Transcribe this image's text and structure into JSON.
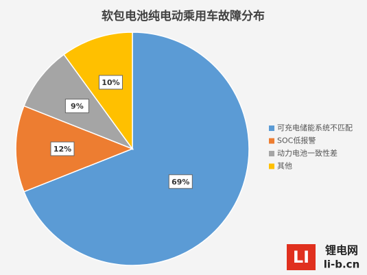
{
  "chart_data": {
    "type": "pie",
    "title": "软包电池纯电动乘用车故障分布",
    "categories": [
      "可充电储能系统不匹配",
      "SOC低报警",
      "动力电池一致性差",
      "其他"
    ],
    "values": [
      69,
      12,
      9,
      10
    ],
    "value_labels": [
      "69%",
      "12%",
      "9%",
      "10%"
    ],
    "colors": [
      "#5b9bd5",
      "#ed7d31",
      "#a5a5a5",
      "#ffc000"
    ],
    "legend": "right"
  },
  "watermark": {
    "logo": "LI",
    "name": "锂电网",
    "url": "li-b.cn"
  }
}
